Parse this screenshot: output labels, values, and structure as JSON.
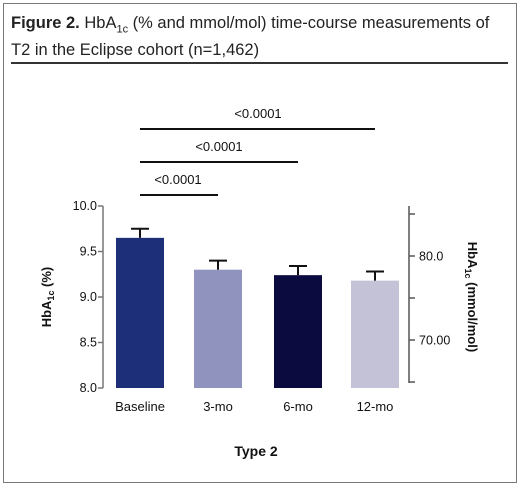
{
  "caption": {
    "figure_label": "Figure 2.",
    "text_before_sub": "HbA",
    "text_sub": "1c",
    "text_after_sub": " (% and mmol/mol) time-course measurements of T2 in the Eclipse cohort (n=1,462)"
  },
  "chart_data": {
    "type": "bar",
    "categories": [
      "Baseline",
      "3-mo",
      "6-mo",
      "12-mo"
    ],
    "values": [
      9.65,
      9.3,
      9.24,
      9.18
    ],
    "error_upper": [
      0.1,
      0.1,
      0.1,
      0.1
    ],
    "colors": [
      "#1e2f7a",
      "#8f93bd",
      "#0b0b40",
      "#c3c2d6"
    ],
    "ylim": [
      8.0,
      10.0
    ],
    "yticks": [
      "10.0",
      "9.5",
      "9.0",
      "8.5",
      "8.0"
    ],
    "ylabel": "HbA1c (%)",
    "ylabel_parts": {
      "base": "HbA",
      "sub": "1c",
      "rest": " (%)"
    },
    "y2ticks": [
      "80.0",
      "70.00"
    ],
    "y2tick_values": [
      80.0,
      70.0
    ],
    "y2label": "HbA1c (mmol/mol)",
    "y2label_parts": {
      "base": "HbA",
      "sub": "1c",
      "rest": " (mmol/mol)"
    },
    "xlabel": "Type 2",
    "significance": [
      {
        "from": 0,
        "to": 1,
        "label": "<0.0001"
      },
      {
        "from": 0,
        "to": 2,
        "label": "<0.0001"
      },
      {
        "from": 0,
        "to": 3,
        "label": "<0.0001"
      }
    ],
    "grid": false,
    "legend": "none"
  }
}
